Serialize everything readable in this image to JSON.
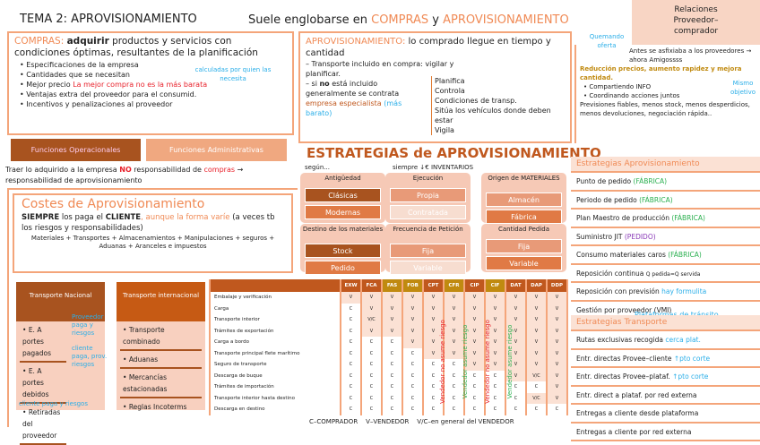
{
  "header": {
    "title": "TEMA 2: APROVISIONAMIENTO",
    "sub_a": "Suele englobarse en ",
    "sub_b": "COMPRAS",
    "sub_c": " y ",
    "sub_d": "APROVISIONAMIENTO"
  },
  "compras": {
    "label": "COMPRAS:",
    "bold": "adquirir",
    "text": " productos y servicios con condiciones óptimas, resultantes de la planificación",
    "note": "calculadas por quien las necesita",
    "items": [
      "Especificaciones de la empresa",
      "Cantidades que se necesitan",
      "Mejor precio",
      "Ventajas extra del proveedor para el consumid.",
      "Incentivos y penalizaciones al proveedor"
    ],
    "precio_note": "La mejor compra no es la más barata"
  },
  "funciones": {
    "op": "Funciones Operacionales",
    "adm": "Funciones Administrativas",
    "t1": "Traer lo adquirido a la empresa ",
    "no": "NO",
    "t2": " responsabilidad de ",
    "compras": "compras",
    "t3": " → responsabilidad de aprovisionamiento"
  },
  "costes": {
    "title": "Costes de Aprovisionamiento",
    "s1": "SIEMPRE",
    "s2": " los paga el ",
    "s3": "CLIENTE",
    "s4": ", aunque la forma varíe",
    "s5": " (a veces tb los riesgos y responsabilidades)",
    "list": "Materiales + Transportes + Almacenamientos + Manipulaciones + seguros + Aduanas + Aranceles e impuestos"
  },
  "aprov": {
    "label": "APROVISIONAMIENTO:",
    "text": " lo comprado llegue en tiempo y cantidad",
    "l1": "– Transporte incluido en compra: vigilar y planificar.",
    "l2a": "– si ",
    "l2b": "no",
    "l2c": " está incluido generalmente se contrata ",
    "l2d": "empresa especialista",
    "l2e": " (más barato)",
    "right": [
      "Planifica",
      "Controla",
      "Condiciones de transp.",
      "Sitúa los vehículos donde deben estar",
      "Vigila"
    ]
  },
  "relaciones": {
    "title": "Relaciones Proveedor–comprador",
    "n1": "Quemando oferta",
    "t1": "Antes se asfixiaba a los proveedores → ahora Amigossss",
    "gold": "Reducción precios, aumento rapidez y mejora cantidad.",
    "n2": "Mismo objetivo",
    "items": [
      "Compartiendo INFO",
      "Coordinando acciones juntos"
    ],
    "t2": "Previsiones fiables, menos stock, menos desperdicios, menos devoluciones, negociación rápida.."
  },
  "estrategias": {
    "title": "ESTRATEGIAS de APROVISIONAMIENTO",
    "segun": "según...",
    "siempre": "siempre ↓€ INVENTARIOS",
    "cards": [
      {
        "t": "Antigüedad",
        "o": [
          "Clásicas",
          "Modernas"
        ]
      },
      {
        "t": "Ejecución",
        "o": [
          "Propia",
          "Contratada"
        ]
      },
      {
        "t": "Origen de MATERIALES",
        "o": [
          "Almacén",
          "Fábrica"
        ]
      },
      {
        "t": "Destino de los materiales",
        "o": [
          "Stock",
          "Pedido"
        ]
      },
      {
        "t": "Frecuencia de Petición",
        "o": [
          "Fija",
          "Variable"
        ]
      },
      {
        "t": "Cantidad Pedida",
        "o": [
          "Fija",
          "Variable"
        ]
      }
    ]
  },
  "list_aprov": {
    "title": "Estrategias Aprovisionamiento",
    "rows": [
      [
        "Punto de pedido ",
        "(FÁBRICA)",
        "grn"
      ],
      [
        "Periodo de pedido ",
        "(FÁBRICA)",
        "grn"
      ],
      [
        "Plan Maestro de producción ",
        "(FÁBRICA)",
        "grn"
      ],
      [
        "Suministro JIT ",
        "(PEDIDO)",
        "pur"
      ],
      [
        "Consumo materiales caros ",
        "(FÁBRICA)",
        "grn"
      ],
      [
        "Reposición continua ",
        "Q pedida=Q servida",
        ""
      ],
      [
        "Reposición con previsión ",
        "hay formulita",
        "blue"
      ],
      [
        "Gestión por proveedor (VMI)",
        "",
        ""
      ]
    ]
  },
  "list_trans": {
    "note": "Plataformas de tránsito",
    "title": "Estrategias Transporte",
    "rows": [
      [
        "Rutas exclusivas recogida ",
        "cerca plat."
      ],
      [
        "Entr. directas Provee–cliente ",
        "↑pto corte"
      ],
      [
        "Entr. directas Provee–plataf. ",
        "↑pto corte"
      ],
      [
        "Entr. direct a plataf. por red externa",
        ""
      ],
      [
        "Entregas a cliente desde plataforma",
        ""
      ],
      [
        "Entregas a cliente por red externa",
        ""
      ]
    ]
  },
  "transporte": {
    "nac": {
      "title": "Transporte Nacional",
      "items": [
        "E. A portes pagados",
        "E. A portes debidos",
        "Retiradas del proveedor"
      ],
      "notes": [
        "Proveedor paga y riesgos",
        "cliente paga, prov. riesgos",
        "cliente paga y riesgos"
      ]
    },
    "int": {
      "title": "Transporte internacional",
      "items": [
        "Transporte combinado",
        "Aduanas",
        "Mercancías estacionadas",
        "Reglas Incoterms"
      ]
    }
  },
  "incoterms": {
    "cols": [
      "EXW",
      "FCA",
      "FAS",
      "FOB",
      "CPT",
      "CFR",
      "CIP",
      "CIF",
      "DAT",
      "DAP",
      "DDP"
    ],
    "rows": [
      [
        "Embalaje y verificación",
        [
          "V",
          "V",
          "V",
          "V",
          "V",
          "V",
          "V",
          "V",
          "V",
          "V",
          "V"
        ]
      ],
      [
        "Carga",
        [
          "C",
          "V",
          "V",
          "V",
          "V",
          "V",
          "V",
          "V",
          "V",
          "V",
          "V"
        ]
      ],
      [
        "Transporte interior",
        [
          "C",
          "V/C",
          "V",
          "V",
          "V",
          "V",
          "V",
          "V",
          "V",
          "V",
          "V"
        ]
      ],
      [
        "Trámites de exportación",
        [
          "C",
          "V",
          "V",
          "V",
          "V",
          "V",
          "V",
          "V",
          "V",
          "V",
          "V"
        ]
      ],
      [
        "Carga a bordo",
        [
          "C",
          "C",
          "C",
          "V",
          "V",
          "V",
          "V",
          "V",
          "V",
          "V",
          "V"
        ]
      ],
      [
        "Transporte principal flete marítimo",
        [
          "C",
          "C",
          "C",
          "C",
          "V",
          "V",
          "V",
          "V",
          "V",
          "V",
          "V"
        ]
      ],
      [
        "Seguro de transporte",
        [
          "C",
          "C",
          "C",
          "C",
          "C",
          "C",
          "V",
          "V",
          "V",
          "V",
          "V"
        ]
      ],
      [
        "Descarga de buque",
        [
          "C",
          "C",
          "C",
          "C",
          "C",
          "C",
          "C",
          "C",
          "V",
          "V/C",
          "V"
        ]
      ],
      [
        "Trámites de importación",
        [
          "C",
          "C",
          "C",
          "C",
          "C",
          "C",
          "C",
          "C",
          "C",
          "C",
          "V"
        ]
      ],
      [
        "Transporte interior hasta destino",
        [
          "C",
          "C",
          "C",
          "C",
          "C",
          "C",
          "C",
          "C",
          "C",
          "V/C",
          "V"
        ]
      ],
      [
        "Descarga en destino",
        [
          "C",
          "C",
          "C",
          "C",
          "C",
          "C",
          "C",
          "C",
          "C",
          "C",
          "C"
        ]
      ]
    ],
    "no_riesgo": "Vendedor no asume riesgo",
    "si_riesgo": "Vendedor asume riesgo",
    "legend": "C–COMPRADOR    V–VENDEDOR    V/C–en general del VENDEDOR"
  }
}
